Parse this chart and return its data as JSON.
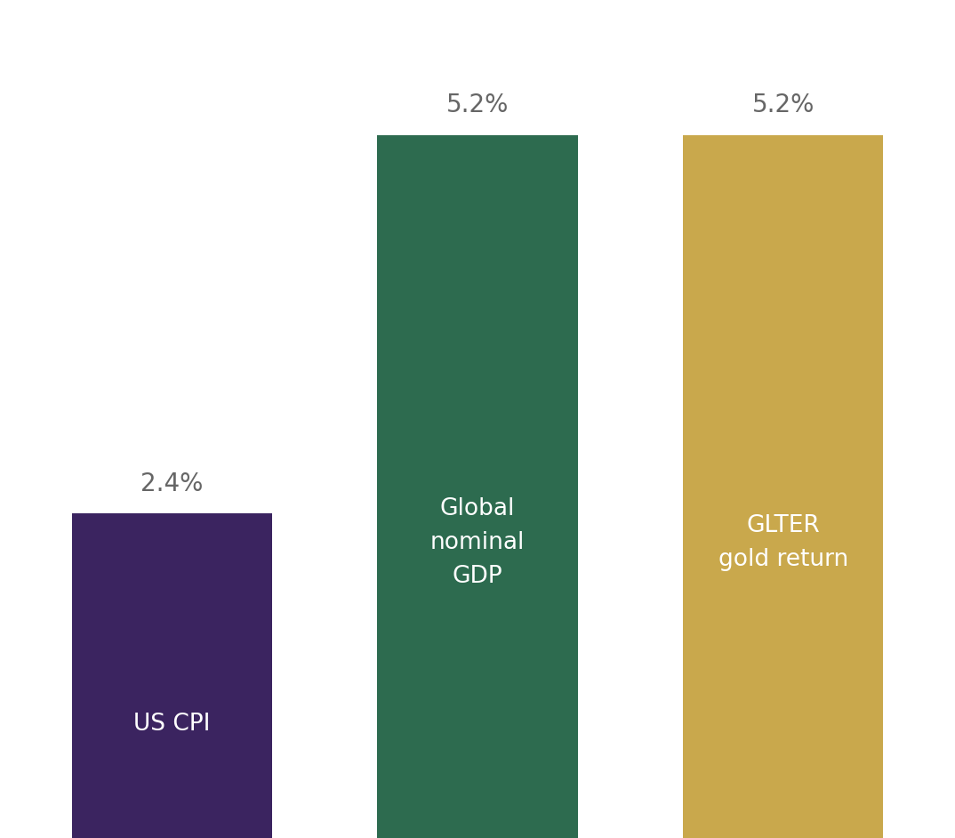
{
  "categories": [
    "US CPI",
    "Global\nnominal\nGDP",
    "GLTER\ngold return"
  ],
  "values": [
    2.4,
    5.2,
    5.2
  ],
  "bar_colors": [
    "#3b2460",
    "#2d6b4f",
    "#c9a84c"
  ],
  "value_labels": [
    "2.4%",
    "5.2%",
    "5.2%"
  ],
  "background_color": "#ffffff",
  "label_color": "#ffffff",
  "value_label_color": "#666666",
  "bar_width": 0.21,
  "bar_positions": [
    0.18,
    0.5,
    0.82
  ],
  "ylim": [
    0,
    6.2
  ],
  "label_fontsize": 19,
  "value_fontsize": 20,
  "figsize": [
    10.74,
    9.42
  ],
  "dpi": 100
}
